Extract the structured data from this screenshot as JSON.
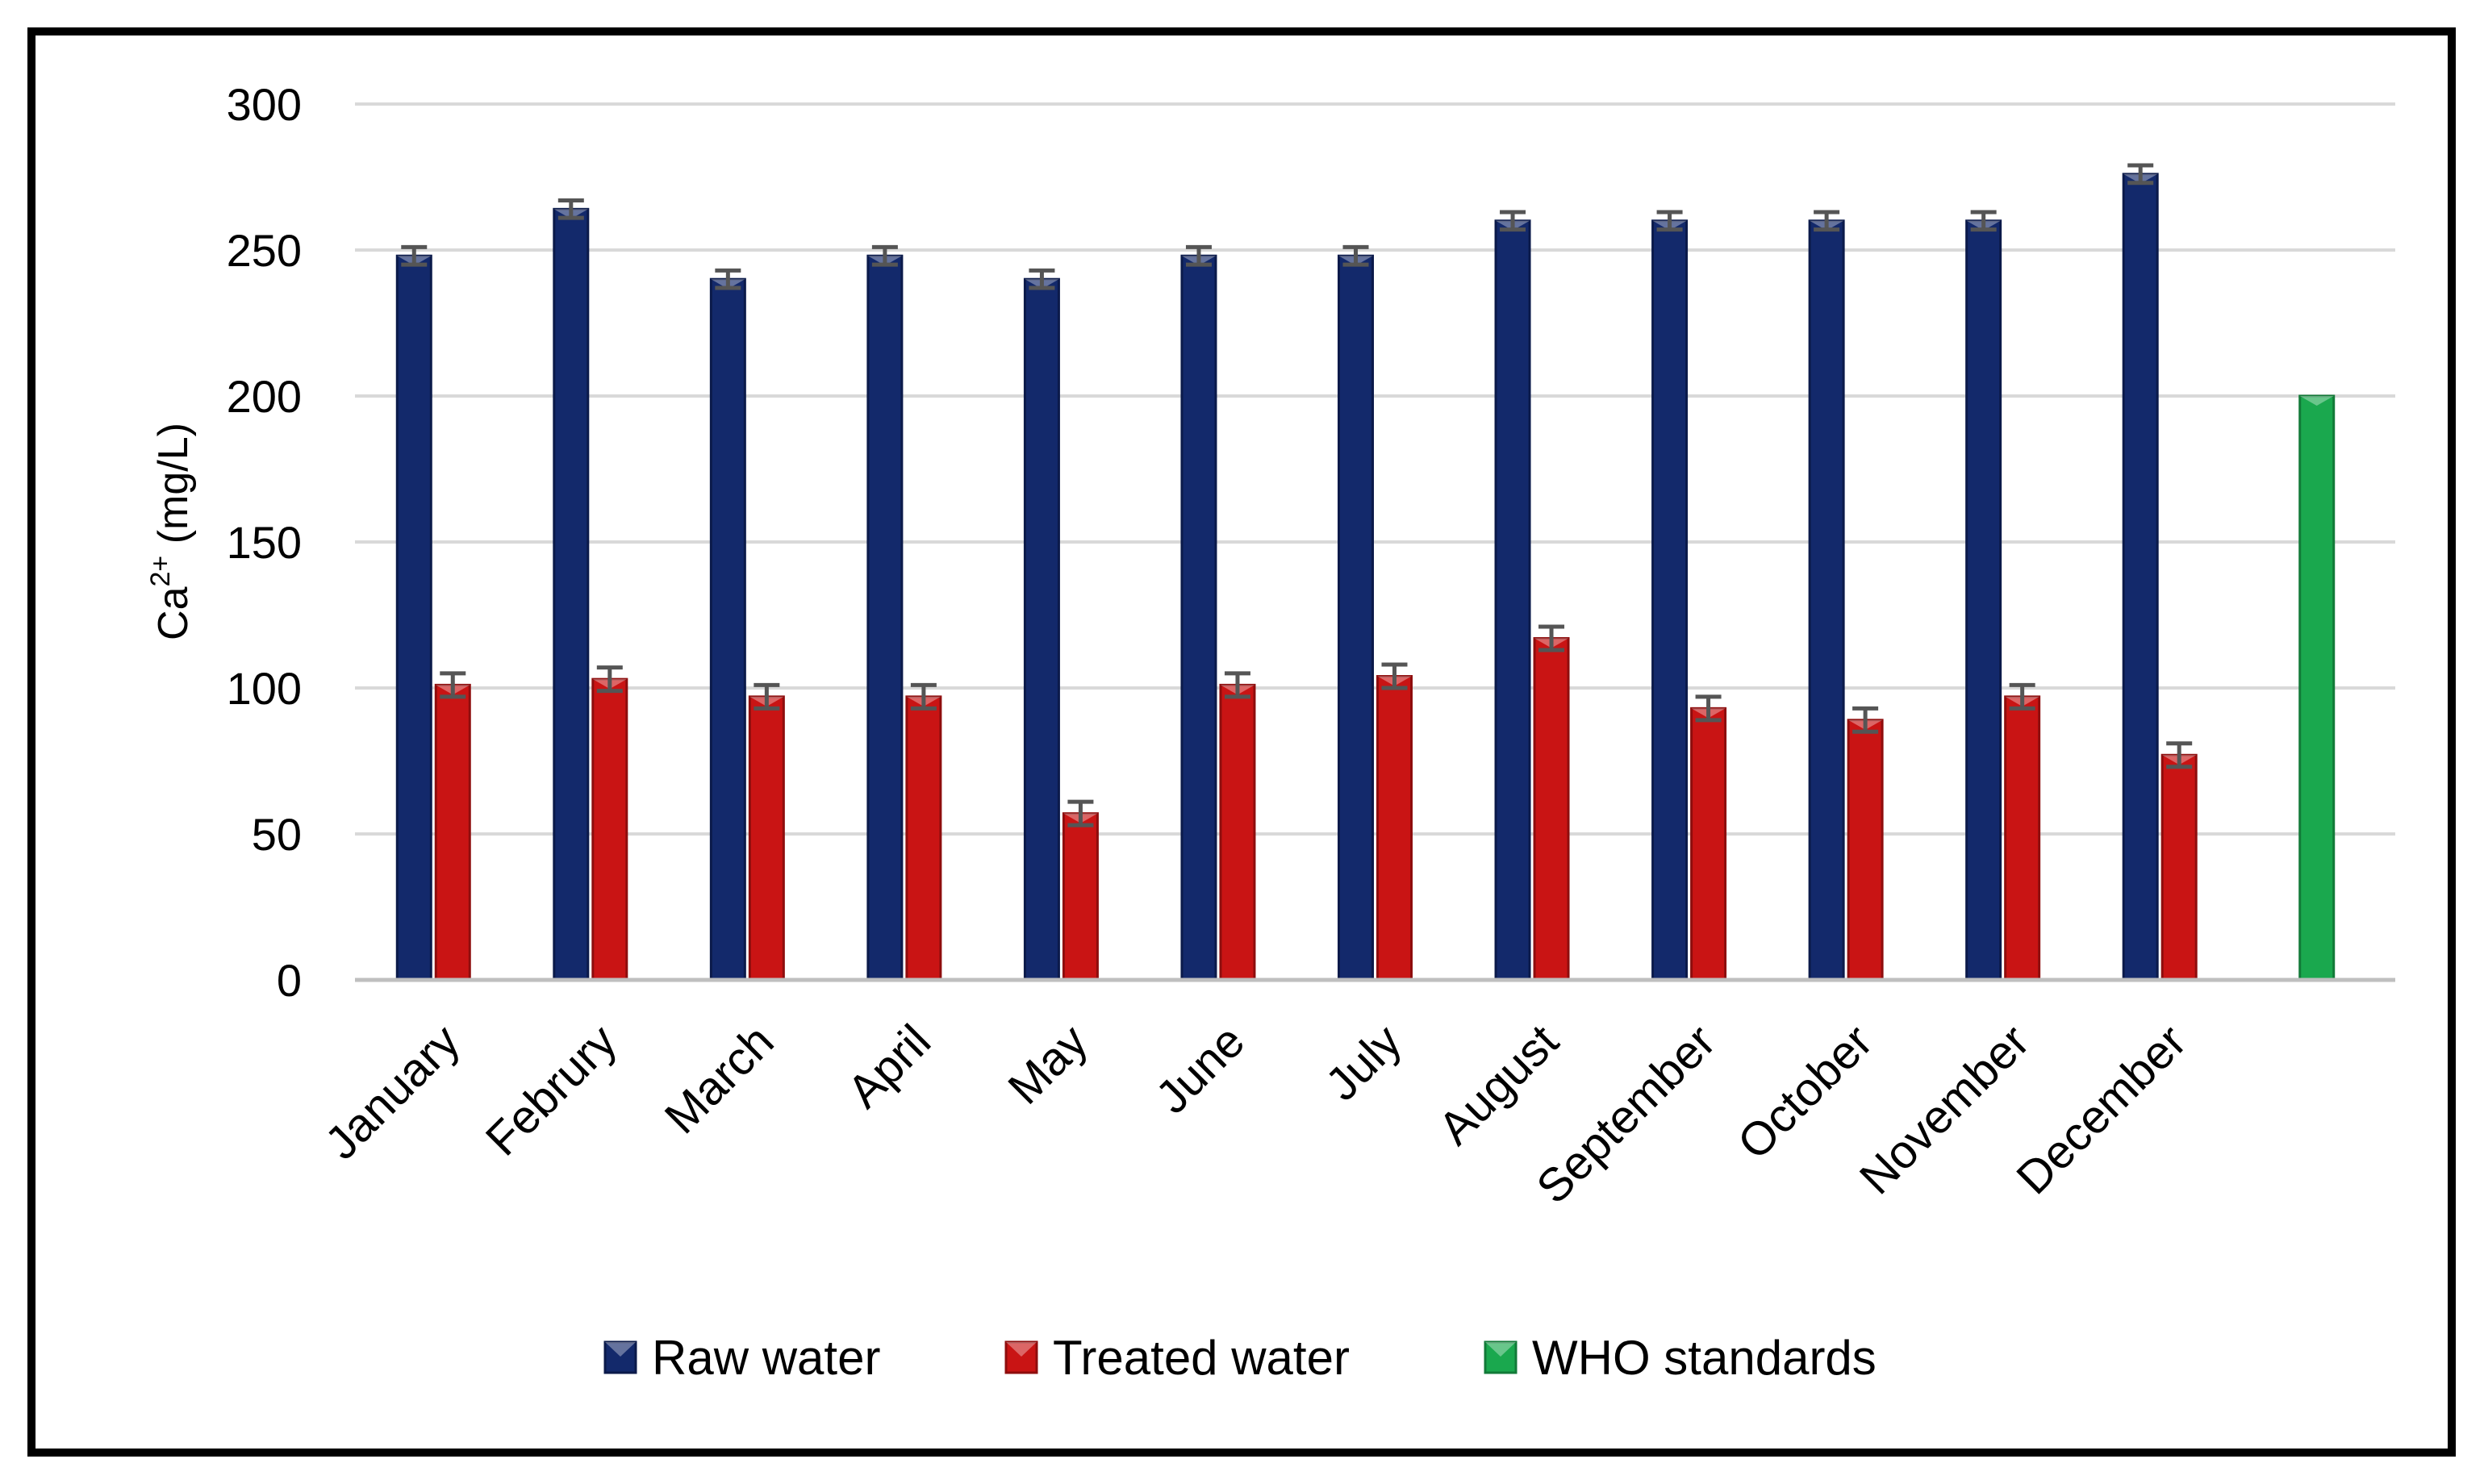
{
  "chart_data": {
    "type": "bar",
    "title": "",
    "xlabel": "",
    "ylabel": {
      "base": "Ca",
      "superscript": "2+",
      "unit": " (mg/L)"
    },
    "ylim": [
      0,
      300
    ],
    "yticks": [
      0,
      50,
      100,
      150,
      200,
      250,
      300
    ],
    "grid": true,
    "legend_position": "bottom",
    "categories": [
      "January",
      "Februry",
      "March",
      "April",
      "May",
      "June",
      "July",
      "August",
      "September",
      "October",
      "November",
      "December",
      ""
    ],
    "series": [
      {
        "name": "Raw water",
        "color": "#13296b",
        "values": [
          248,
          264,
          240,
          248,
          240,
          248,
          248,
          260,
          260,
          260,
          260,
          276,
          null
        ],
        "error": [
          3,
          3,
          3,
          3,
          3,
          3,
          3,
          3,
          3,
          3,
          3,
          3,
          null
        ]
      },
      {
        "name": "Treated water",
        "color": "#c91414",
        "values": [
          101,
          103,
          97,
          97,
          57,
          101,
          104,
          117,
          93,
          89,
          97,
          77,
          null
        ],
        "error": [
          4,
          4,
          4,
          4,
          4,
          4,
          4,
          4,
          4,
          4,
          4,
          4,
          null
        ]
      },
      {
        "name": "WHO standards",
        "color": "#1aa84e",
        "values": [
          null,
          null,
          null,
          null,
          null,
          null,
          null,
          null,
          null,
          null,
          null,
          null,
          200
        ],
        "error": [
          null,
          null,
          null,
          null,
          null,
          null,
          null,
          null,
          null,
          null,
          null,
          null,
          null
        ]
      }
    ]
  }
}
